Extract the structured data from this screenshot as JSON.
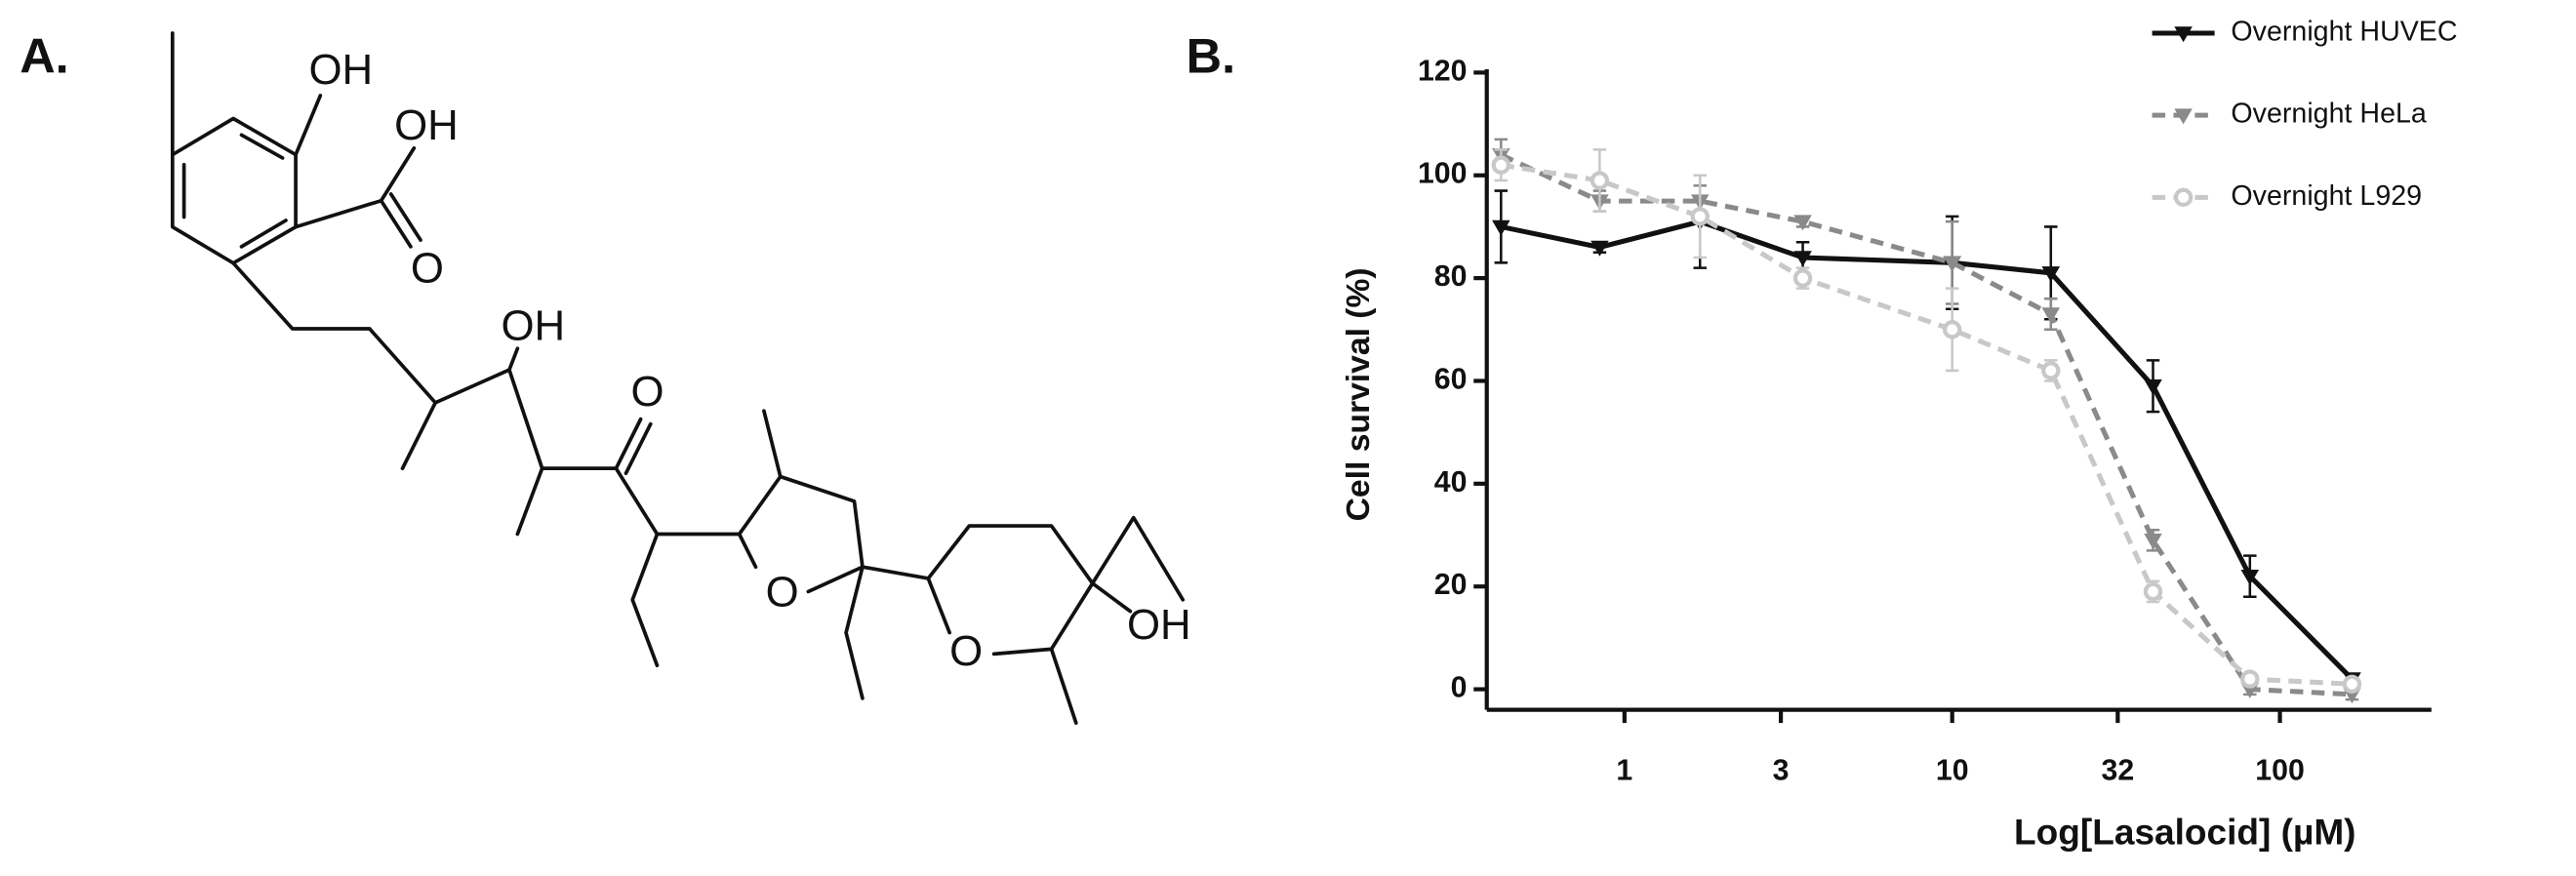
{
  "panels": [
    "A.",
    "B."
  ],
  "structure_labels": [
    "OH",
    "OH",
    "O",
    "OH",
    "O",
    "O",
    "O",
    "OH"
  ],
  "chart_data": {
    "type": "line",
    "xlabel": "Log[Lasalocid] (µM)",
    "ylabel": "Cell survival (%)",
    "xscale": "log",
    "x": [
      0.42,
      0.84,
      1.7,
      3.5,
      10,
      20,
      41,
      81,
      166
    ],
    "xlim": [
      0.38,
      290
    ],
    "xticks": [
      1,
      3,
      10,
      32,
      100
    ],
    "ylim": [
      -4,
      120
    ],
    "yticks": [
      0,
      20,
      40,
      60,
      80,
      100,
      120
    ],
    "legend": "upper right",
    "series": [
      {
        "name": "Overnight HUVEC",
        "color": "#111111",
        "dash": "solid",
        "marker": "triangle-down",
        "values": [
          90,
          86,
          91,
          84,
          83,
          81,
          59,
          22,
          2
        ],
        "errors": [
          7,
          1,
          9,
          3,
          9,
          9,
          5,
          4,
          1
        ]
      },
      {
        "name": "Overnight HeLa",
        "color": "#8a8a8a",
        "dash": "dashed",
        "marker": "triangle-down",
        "values": [
          104,
          95,
          95,
          91,
          83,
          73,
          29,
          0,
          -1
        ],
        "errors": [
          3,
          2,
          3,
          1,
          8,
          3,
          2,
          1,
          1
        ]
      },
      {
        "name": "Overnight L929",
        "color": "#c8c8c8",
        "dash": "dashed",
        "marker": "circle-open",
        "values": [
          102,
          99,
          92,
          80,
          70,
          62,
          19,
          2,
          1
        ],
        "errors": [
          3,
          6,
          8,
          2,
          8,
          2,
          2,
          1,
          1
        ]
      }
    ]
  }
}
